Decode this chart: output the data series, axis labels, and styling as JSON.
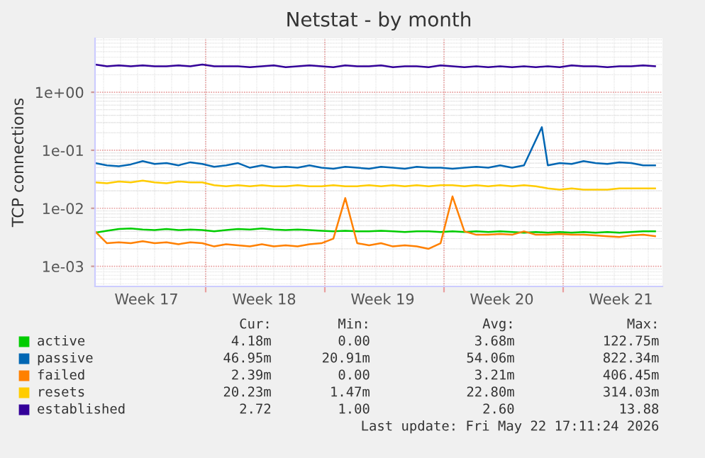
{
  "chart_data": {
    "type": "line",
    "title": "Netstat - by month",
    "ylabel": "TCP connections",
    "log": "y",
    "x": [
      "2026-04-20T12:00",
      "2026-04-21T04:48",
      "2026-04-21T21:36",
      "2026-04-22T14:24",
      "2026-04-23T07:12",
      "2026-04-24T00:00",
      "2026-04-24T16:48",
      "2026-04-25T09:36",
      "2026-04-26T02:24",
      "2026-04-26T19:12",
      "2026-04-27T12:00",
      "2026-04-28T04:48",
      "2026-04-28T21:36",
      "2026-04-29T14:24",
      "2026-04-30T07:12",
      "2026-05-01T00:00",
      "2026-05-01T16:48",
      "2026-05-02T09:36",
      "2026-05-03T02:24",
      "2026-05-03T19:12",
      "2026-05-04T12:00",
      "2026-05-05T04:48",
      "2026-05-05T21:36",
      "2026-05-06T14:24",
      "2026-05-07T07:12",
      "2026-05-08T00:00",
      "2026-05-08T16:48",
      "2026-05-09T09:36",
      "2026-05-10T02:24",
      "2026-05-10T19:12",
      "2026-05-11T12:00",
      "2026-05-12T04:48",
      "2026-05-12T21:36",
      "2026-05-13T14:24",
      "2026-05-14T07:12",
      "2026-05-15T00:00",
      "2026-05-15T16:48",
      "2026-05-16T09:36",
      "2026-05-17T02:24",
      "2026-05-17T19:12",
      "2026-05-18T12:00",
      "2026-05-19T04:48",
      "2026-05-19T21:36",
      "2026-05-20T14:24",
      "2026-05-21T07:12",
      "2026-05-22T00:00",
      "2026-05-22T16:48",
      "2026-05-23T09:36"
    ],
    "xlim": [
      "2026-04-20T12:00",
      "2026-05-23T20:00"
    ],
    "xticks": [
      {
        "value": "2026-04-23T12:30",
        "label": "Week 17"
      },
      {
        "value": "2026-04-27T00:00",
        "label": null
      },
      {
        "value": "2026-04-30T10:30",
        "label": "Week 18"
      },
      {
        "value": "2026-05-04T00:00",
        "label": null
      },
      {
        "value": "2026-05-07T09:30",
        "label": "Week 19"
      },
      {
        "value": "2026-05-11T00:00",
        "label": null
      },
      {
        "value": "2026-05-14T09:30",
        "label": "Week 20"
      },
      {
        "value": "2026-05-18T00:00",
        "label": null
      },
      {
        "value": "2026-05-21T09:30",
        "label": "Week 21"
      }
    ],
    "ylim": [
      0.00045,
      8.5
    ],
    "yticks": [
      {
        "value": 0.001,
        "label": "1e-03"
      },
      {
        "value": 0.01,
        "label": "1e-02"
      },
      {
        "value": 0.1,
        "label": "1e-01"
      },
      {
        "value": 1,
        "label": "1e+00"
      }
    ],
    "grid": true,
    "legend": "bottom",
    "marker": "none",
    "line_style": "solid",
    "series": [
      {
        "name": "active",
        "color": "#00cc00",
        "values": [
          0.0038,
          0.0041,
          0.0044,
          0.0045,
          0.0043,
          0.0042,
          0.0044,
          0.0042,
          0.0043,
          0.0042,
          0.004,
          0.0042,
          0.0044,
          0.0043,
          0.0045,
          0.0043,
          0.0042,
          0.0043,
          0.0042,
          0.0041,
          0.004,
          0.0041,
          0.004,
          0.004,
          0.0041,
          0.004,
          0.0039,
          0.004,
          0.004,
          0.0039,
          0.004,
          0.0039,
          0.004,
          0.0039,
          0.004,
          0.0039,
          0.0038,
          0.0039,
          0.0038,
          0.0039,
          0.0038,
          0.0039,
          0.0038,
          0.0039,
          0.0038,
          0.0039,
          0.004,
          0.004
        ]
      },
      {
        "name": "passive",
        "color": "#0066b3",
        "x": [
          "2026-04-20T12:00",
          "2026-04-21T04:48",
          "2026-04-21T21:36",
          "2026-04-22T14:24",
          "2026-04-23T07:12",
          "2026-04-24T00:00",
          "2026-04-24T16:48",
          "2026-04-25T09:36",
          "2026-04-26T02:24",
          "2026-04-26T19:12",
          "2026-04-27T12:00",
          "2026-04-28T04:48",
          "2026-04-28T21:36",
          "2026-04-29T14:24",
          "2026-04-30T07:12",
          "2026-05-01T00:00",
          "2026-05-01T16:48",
          "2026-05-02T09:36",
          "2026-05-03T02:24",
          "2026-05-03T19:12",
          "2026-05-04T12:00",
          "2026-05-05T04:48",
          "2026-05-05T21:36",
          "2026-05-06T14:24",
          "2026-05-07T07:12",
          "2026-05-08T00:00",
          "2026-05-08T16:48",
          "2026-05-09T09:36",
          "2026-05-10T02:24",
          "2026-05-10T19:12",
          "2026-05-11T12:00",
          "2026-05-12T04:48",
          "2026-05-12T21:36",
          "2026-05-13T14:24",
          "2026-05-14T07:12",
          "2026-05-15T00:00",
          "2026-05-15T16:48",
          "2026-05-16T18:00",
          "2026-05-17T02:24",
          "2026-05-17T19:12",
          "2026-05-18T12:00",
          "2026-05-19T04:48",
          "2026-05-19T21:36",
          "2026-05-20T14:24",
          "2026-05-21T07:12",
          "2026-05-22T00:00",
          "2026-05-22T16:48",
          "2026-05-23T09:36"
        ],
        "values": [
          0.06,
          0.055,
          0.053,
          0.057,
          0.065,
          0.058,
          0.06,
          0.055,
          0.062,
          0.058,
          0.052,
          0.055,
          0.06,
          0.05,
          0.055,
          0.05,
          0.052,
          0.05,
          0.055,
          0.05,
          0.048,
          0.052,
          0.05,
          0.048,
          0.052,
          0.05,
          0.048,
          0.052,
          0.05,
          0.05,
          0.048,
          0.05,
          0.052,
          0.05,
          0.055,
          0.05,
          0.055,
          0.25,
          0.055,
          0.06,
          0.058,
          0.065,
          0.06,
          0.058,
          0.062,
          0.06,
          0.055,
          0.055
        ]
      },
      {
        "name": "failed",
        "color": "#ff8000",
        "values": [
          0.004,
          0.0025,
          0.0026,
          0.0025,
          0.0027,
          0.0025,
          0.0026,
          0.0024,
          0.0026,
          0.0025,
          0.0022,
          0.0024,
          0.0023,
          0.0022,
          0.0024,
          0.0022,
          0.0023,
          0.0022,
          0.0024,
          0.0025,
          0.003,
          0.015,
          0.0025,
          0.0023,
          0.0025,
          0.0022,
          0.0023,
          0.0022,
          0.002,
          0.0025,
          0.016,
          0.004,
          0.0035,
          0.0035,
          0.0036,
          0.0035,
          0.004,
          0.0035,
          0.0035,
          0.0036,
          0.0035,
          0.0035,
          0.0034,
          0.0033,
          0.0032,
          0.0034,
          0.0035,
          0.0033
        ]
      },
      {
        "name": "resets",
        "color": "#ffcc00",
        "values": [
          0.028,
          0.027,
          0.029,
          0.028,
          0.03,
          0.028,
          0.027,
          0.029,
          0.028,
          0.028,
          0.025,
          0.024,
          0.025,
          0.024,
          0.025,
          0.024,
          0.024,
          0.025,
          0.024,
          0.024,
          0.025,
          0.024,
          0.024,
          0.025,
          0.024,
          0.025,
          0.024,
          0.025,
          0.024,
          0.025,
          0.025,
          0.024,
          0.025,
          0.024,
          0.025,
          0.024,
          0.025,
          0.024,
          0.022,
          0.021,
          0.022,
          0.021,
          0.021,
          0.021,
          0.022,
          0.022,
          0.022,
          0.022
        ]
      },
      {
        "name": "established",
        "color": "#330099",
        "values": [
          3.0,
          2.8,
          2.9,
          2.8,
          2.9,
          2.8,
          2.8,
          2.9,
          2.8,
          3.0,
          2.8,
          2.8,
          2.8,
          2.7,
          2.8,
          2.9,
          2.7,
          2.8,
          2.9,
          2.8,
          2.7,
          2.9,
          2.8,
          2.8,
          2.9,
          2.7,
          2.8,
          2.8,
          2.7,
          2.9,
          2.8,
          2.7,
          2.8,
          2.7,
          2.8,
          2.7,
          2.8,
          2.7,
          2.8,
          2.7,
          2.9,
          2.8,
          2.8,
          2.7,
          2.8,
          2.8,
          2.9,
          2.8
        ]
      }
    ],
    "annotations": [
      "Cur:",
      "Min:",
      "Avg:",
      "Max:",
      "4.18m",
      "0.00",
      "3.68m",
      "122.75m",
      "46.95m",
      "20.91m",
      "54.06m",
      "822.34m",
      "2.39m",
      "0.00",
      "3.21m",
      "406.45m",
      "20.23m",
      "1.47m",
      "22.80m",
      "314.03m",
      "2.72",
      "1.00",
      "2.60",
      "13.88",
      "Last update: Fri May 22 17:11:24 2026"
    ]
  }
}
